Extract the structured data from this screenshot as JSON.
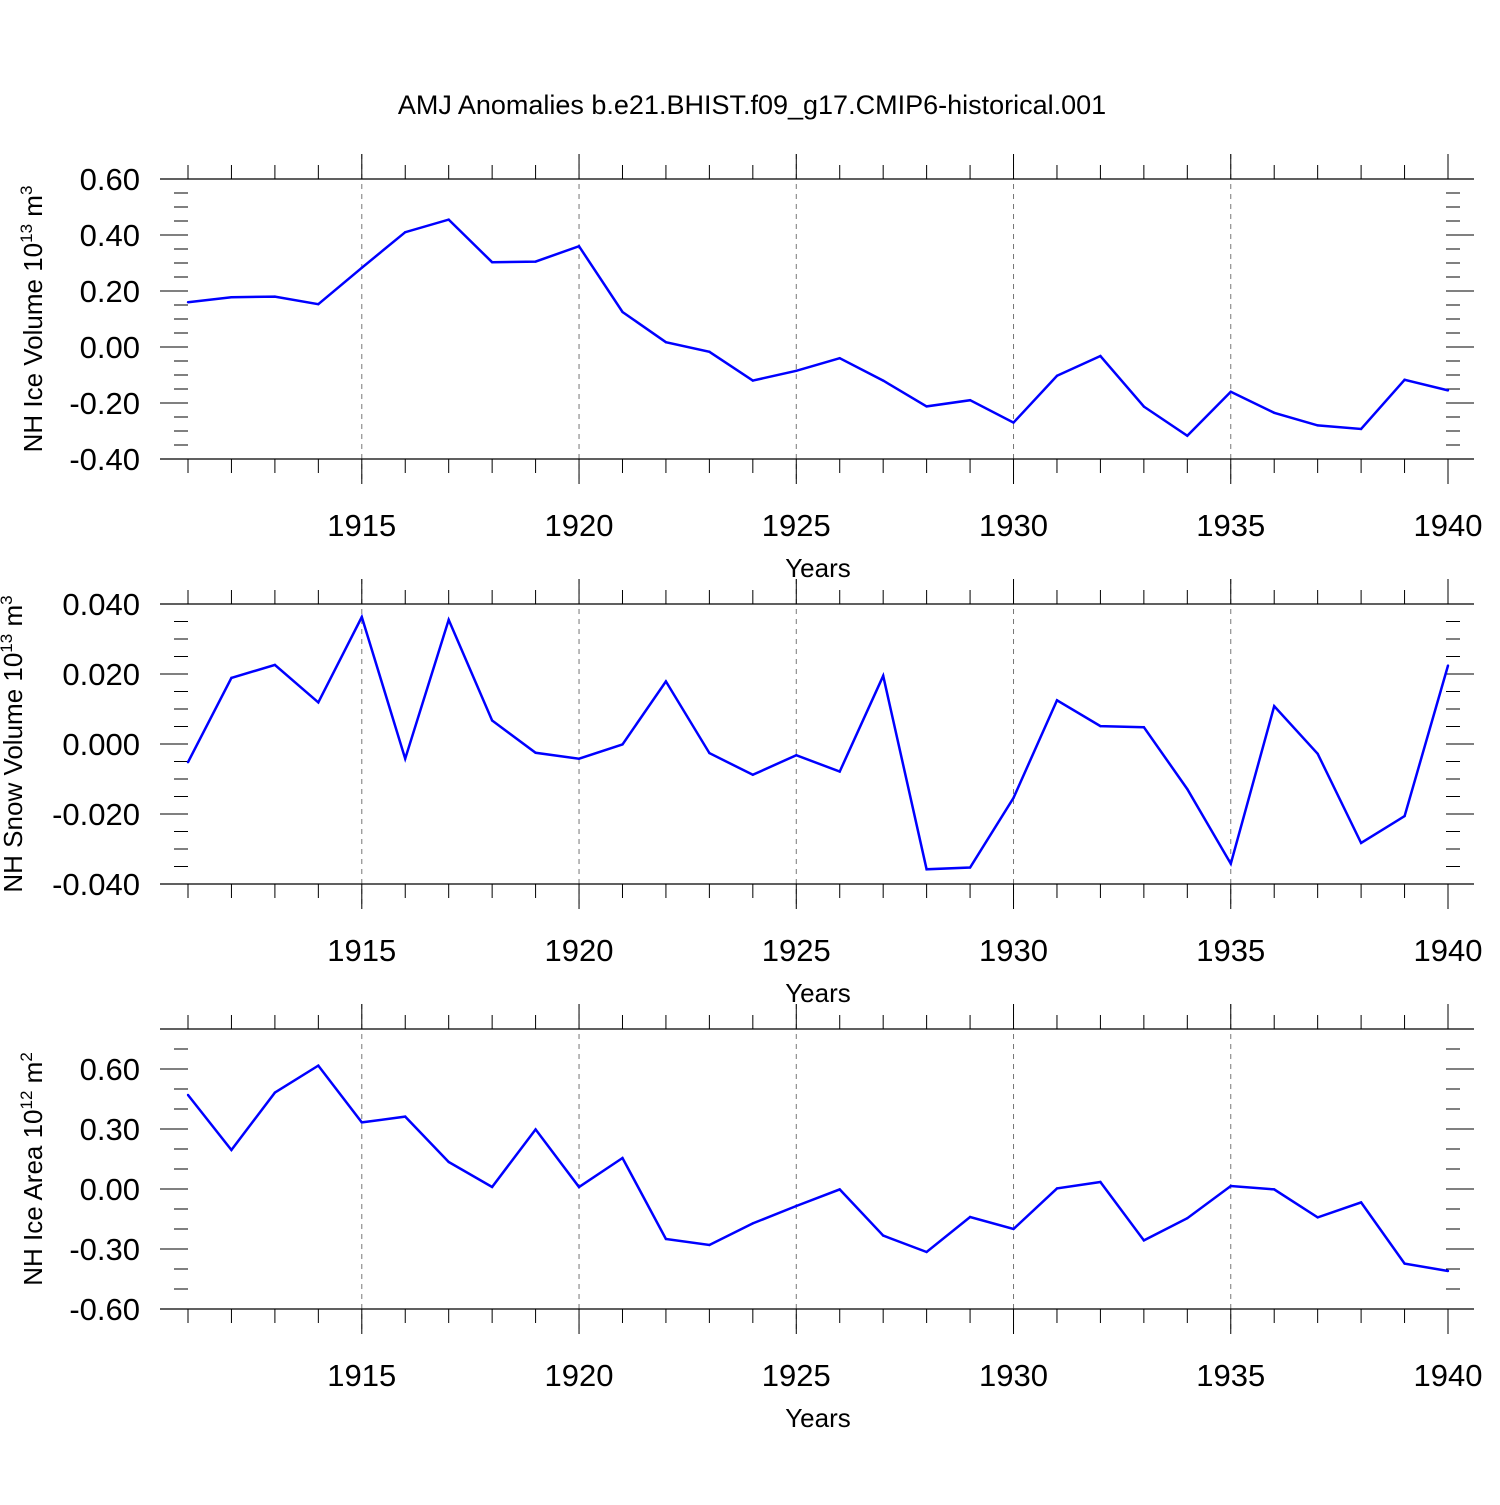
{
  "title": "AMJ Anomalies b.e21.BHIST.f09_g17.CMIP6-historical.001",
  "line_color": "#0000ff",
  "chart_data": [
    {
      "type": "line",
      "ylabel": {
        "text": "NH Ice Volume 10",
        "exp": "13",
        "unit": " m",
        "unit_exp": "3"
      },
      "xlabel": "Years",
      "xlim": [
        1911,
        1940
      ],
      "ylim": [
        -0.4,
        0.6
      ],
      "yticks": [
        0.6,
        0.4,
        0.2,
        0.0,
        -0.2,
        -0.4
      ],
      "ytick_labels": [
        "0.60",
        "0.40",
        "0.20",
        "0.00",
        "-0.20",
        "-0.40"
      ],
      "xticks": [
        1915,
        1920,
        1925,
        1930,
        1935,
        1940
      ],
      "xtick_labels": [
        "1915",
        "1920",
        "1925",
        "1930",
        "1935",
        "1940"
      ],
      "grid": "vertical dashed at major x ticks",
      "series": [
        {
          "x": [
            1911,
            1912,
            1913,
            1914,
            1915,
            1916,
            1917,
            1918,
            1919,
            1920,
            1921,
            1922,
            1923,
            1924,
            1925,
            1926,
            1927,
            1928,
            1929,
            1930,
            1931,
            1932,
            1933,
            1934,
            1935,
            1936,
            1937,
            1938,
            1939,
            1940
          ],
          "values": [
            0.16,
            0.178,
            0.18,
            0.153,
            0.283,
            0.41,
            0.455,
            0.303,
            0.305,
            0.36,
            0.125,
            0.017,
            -0.017,
            -0.12,
            -0.085,
            -0.04,
            -0.12,
            -0.212,
            -0.19,
            -0.27,
            -0.103,
            -0.032,
            -0.213,
            -0.317,
            -0.16,
            -0.235,
            -0.28,
            -0.293,
            -0.117,
            -0.155
          ]
        }
      ]
    },
    {
      "type": "line",
      "ylabel": {
        "text": "NH Snow Volume 10",
        "exp": "13",
        "unit": " m",
        "unit_exp": "3"
      },
      "xlabel": "Years",
      "xlim": [
        1911,
        1940
      ],
      "ylim": [
        -0.04,
        0.04
      ],
      "yticks": [
        0.04,
        0.02,
        0.0,
        -0.02,
        -0.04
      ],
      "ytick_labels": [
        "0.040",
        "0.020",
        "0.000",
        "-0.020",
        "-0.040"
      ],
      "xticks": [
        1915,
        1920,
        1925,
        1930,
        1935,
        1940
      ],
      "xtick_labels": [
        "1915",
        "1920",
        "1925",
        "1930",
        "1935",
        "1940"
      ],
      "grid": "vertical dashed at major x ticks",
      "series": [
        {
          "x": [
            1911,
            1912,
            1913,
            1914,
            1915,
            1916,
            1917,
            1918,
            1919,
            1920,
            1921,
            1922,
            1923,
            1924,
            1925,
            1926,
            1927,
            1928,
            1929,
            1930,
            1931,
            1932,
            1933,
            1934,
            1935,
            1936,
            1937,
            1938,
            1939,
            1940
          ],
          "values": [
            -0.0052,
            0.0189,
            0.0226,
            0.0119,
            0.0363,
            -0.0042,
            0.0355,
            0.0067,
            -0.0025,
            -0.0042,
            -0.0001,
            0.0179,
            -0.0026,
            -0.0088,
            -0.0032,
            -0.0079,
            0.0195,
            -0.0358,
            -0.0353,
            -0.0154,
            0.0125,
            0.0051,
            0.0048,
            -0.0129,
            -0.0342,
            0.0108,
            -0.0028,
            -0.0283,
            -0.0206,
            0.0224
          ]
        }
      ]
    },
    {
      "type": "line",
      "ylabel": {
        "text": "NH Ice Area 10",
        "exp": "12",
        "unit": " m",
        "unit_exp": "2"
      },
      "xlabel": "Years",
      "xlim": [
        1911,
        1940
      ],
      "ylim": [
        -0.6,
        0.8
      ],
      "yticks": [
        0.6,
        0.3,
        0.0,
        -0.3,
        -0.6
      ],
      "ytick_labels": [
        "0.60",
        "0.30",
        "0.00",
        "-0.30",
        "-0.60"
      ],
      "xticks": [
        1915,
        1920,
        1925,
        1930,
        1935,
        1940
      ],
      "xtick_labels": [
        "1915",
        "1920",
        "1925",
        "1930",
        "1935",
        "1940"
      ],
      "grid": "vertical dashed at major x ticks",
      "series": [
        {
          "x": [
            1911,
            1912,
            1913,
            1914,
            1915,
            1916,
            1917,
            1918,
            1919,
            1920,
            1921,
            1922,
            1923,
            1924,
            1925,
            1926,
            1927,
            1928,
            1929,
            1930,
            1931,
            1932,
            1933,
            1934,
            1935,
            1936,
            1937,
            1938,
            1939,
            1940
          ],
          "values": [
            0.47,
            0.195,
            0.482,
            0.617,
            0.333,
            0.362,
            0.135,
            0.01,
            0.298,
            0.01,
            0.155,
            -0.25,
            -0.28,
            -0.172,
            -0.085,
            -0.002,
            -0.233,
            -0.315,
            -0.14,
            -0.2,
            0.003,
            0.035,
            -0.257,
            -0.146,
            0.015,
            -0.002,
            -0.142,
            -0.067,
            -0.373,
            -0.41
          ]
        }
      ]
    }
  ]
}
